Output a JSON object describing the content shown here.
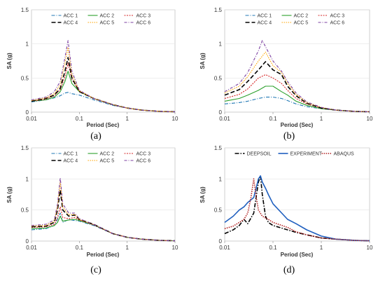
{
  "panel_labels": [
    "(a)",
    "(b)",
    "(c)",
    "(d)"
  ],
  "colors": {
    "ACC 1": "#1f77b4",
    "ACC 2": "#2ca02c",
    "ACC 3": "#d62728",
    "ACC 4": "#000000",
    "ACC 5": "#ffa500",
    "ACC 6": "#7b3fa0",
    "DEEPSOIL": "#000000",
    "EXPERIMENT": "#1f5fbf",
    "ABAQUS": "#b22222"
  },
  "chart_data": [
    {
      "type": "line",
      "xlabel": "Period (Sec)",
      "ylabel": "SA (g)",
      "xscale": "log",
      "xlim": [
        0.01,
        10
      ],
      "ylim": [
        0,
        1.5
      ],
      "xticks": [
        "0.01",
        "0.1",
        "1",
        "10"
      ],
      "yticks": [
        "0",
        "0.5",
        "1",
        "1.5"
      ],
      "legend": "top-center",
      "series": [
        {
          "name": "ACC 1",
          "x": [
            0.01,
            0.02,
            0.03,
            0.04,
            0.05,
            0.058,
            0.07,
            0.1,
            0.2,
            0.5,
            1,
            2,
            5,
            10
          ],
          "y": [
            0.15,
            0.18,
            0.21,
            0.24,
            0.28,
            0.29,
            0.27,
            0.25,
            0.18,
            0.1,
            0.06,
            0.03,
            0.01,
            0.005
          ]
        },
        {
          "name": "ACC 2",
          "x": [
            0.01,
            0.02,
            0.03,
            0.04,
            0.05,
            0.058,
            0.07,
            0.1,
            0.2,
            0.5,
            1,
            2,
            5,
            10
          ],
          "y": [
            0.16,
            0.18,
            0.22,
            0.3,
            0.45,
            0.6,
            0.42,
            0.3,
            0.2,
            0.11,
            0.06,
            0.03,
            0.01,
            0.005
          ]
        },
        {
          "name": "ACC 3",
          "x": [
            0.01,
            0.02,
            0.03,
            0.04,
            0.05,
            0.058,
            0.07,
            0.1,
            0.2,
            0.5,
            1,
            2,
            5,
            10
          ],
          "y": [
            0.16,
            0.19,
            0.24,
            0.33,
            0.52,
            0.72,
            0.48,
            0.31,
            0.2,
            0.11,
            0.06,
            0.03,
            0.01,
            0.005
          ]
        },
        {
          "name": "ACC 4",
          "x": [
            0.01,
            0.02,
            0.03,
            0.04,
            0.05,
            0.058,
            0.07,
            0.1,
            0.2,
            0.5,
            1,
            2,
            5,
            10
          ],
          "y": [
            0.16,
            0.2,
            0.25,
            0.35,
            0.6,
            0.8,
            0.5,
            0.3,
            0.2,
            0.11,
            0.06,
            0.03,
            0.01,
            0.005
          ]
        },
        {
          "name": "ACC 5",
          "x": [
            0.01,
            0.02,
            0.03,
            0.04,
            0.05,
            0.058,
            0.07,
            0.1,
            0.2,
            0.5,
            1,
            2,
            5,
            10
          ],
          "y": [
            0.17,
            0.21,
            0.27,
            0.4,
            0.72,
            0.95,
            0.55,
            0.31,
            0.2,
            0.11,
            0.06,
            0.03,
            0.01,
            0.005
          ]
        },
        {
          "name": "ACC 6",
          "x": [
            0.01,
            0.02,
            0.03,
            0.04,
            0.05,
            0.058,
            0.07,
            0.1,
            0.2,
            0.5,
            1,
            2,
            5,
            10
          ],
          "y": [
            0.18,
            0.22,
            0.3,
            0.45,
            0.8,
            1.05,
            0.6,
            0.32,
            0.2,
            0.11,
            0.06,
            0.03,
            0.01,
            0.005
          ]
        }
      ]
    },
    {
      "type": "line",
      "xlabel": "Period (Sec)",
      "ylabel": "SA (g)",
      "xscale": "log",
      "xlim": [
        0.01,
        10
      ],
      "ylim": [
        0,
        1.5
      ],
      "xticks": [
        "0.01",
        "0.1",
        "1",
        "10"
      ],
      "yticks": [
        "0",
        "0.5",
        "1",
        "1.5"
      ],
      "legend": "top-center",
      "series": [
        {
          "name": "ACC 1",
          "x": [
            0.01,
            0.02,
            0.03,
            0.05,
            0.07,
            0.1,
            0.15,
            0.2,
            0.3,
            0.5,
            1,
            2,
            5,
            10
          ],
          "y": [
            0.12,
            0.14,
            0.16,
            0.2,
            0.22,
            0.22,
            0.2,
            0.17,
            0.12,
            0.08,
            0.05,
            0.03,
            0.01,
            0.005
          ]
        },
        {
          "name": "ACC 2",
          "x": [
            0.01,
            0.02,
            0.03,
            0.05,
            0.07,
            0.1,
            0.15,
            0.2,
            0.3,
            0.5,
            1,
            2,
            5,
            10
          ],
          "y": [
            0.16,
            0.2,
            0.25,
            0.32,
            0.38,
            0.38,
            0.3,
            0.25,
            0.16,
            0.1,
            0.05,
            0.03,
            0.01,
            0.005
          ]
        },
        {
          "name": "ACC 3",
          "x": [
            0.01,
            0.02,
            0.03,
            0.05,
            0.07,
            0.1,
            0.15,
            0.2,
            0.3,
            0.5,
            1,
            2,
            5,
            10
          ],
          "y": [
            0.2,
            0.26,
            0.34,
            0.5,
            0.55,
            0.5,
            0.42,
            0.32,
            0.2,
            0.12,
            0.06,
            0.03,
            0.01,
            0.005
          ]
        },
        {
          "name": "ACC 4",
          "x": [
            0.01,
            0.02,
            0.03,
            0.05,
            0.07,
            0.1,
            0.15,
            0.2,
            0.3,
            0.5,
            1,
            2,
            5,
            10
          ],
          "y": [
            0.25,
            0.33,
            0.45,
            0.62,
            0.74,
            0.62,
            0.55,
            0.38,
            0.24,
            0.13,
            0.06,
            0.03,
            0.01,
            0.005
          ]
        },
        {
          "name": "ACC 5",
          "x": [
            0.01,
            0.02,
            0.03,
            0.05,
            0.07,
            0.1,
            0.15,
            0.2,
            0.3,
            0.5,
            1,
            2,
            5,
            10
          ],
          "y": [
            0.28,
            0.38,
            0.52,
            0.75,
            0.88,
            0.68,
            0.58,
            0.42,
            0.26,
            0.14,
            0.07,
            0.03,
            0.01,
            0.005
          ]
        },
        {
          "name": "ACC 6",
          "x": [
            0.01,
            0.02,
            0.03,
            0.05,
            0.06,
            0.1,
            0.15,
            0.2,
            0.3,
            0.5,
            1,
            2,
            5,
            10
          ],
          "y": [
            0.3,
            0.42,
            0.58,
            0.9,
            1.05,
            0.75,
            0.6,
            0.45,
            0.28,
            0.15,
            0.07,
            0.03,
            0.01,
            0.005
          ]
        }
      ]
    },
    {
      "type": "line",
      "xlabel": "Period (Sec)",
      "ylabel": "SA (g)",
      "xscale": "log",
      "xlim": [
        0.01,
        10
      ],
      "ylim": [
        0,
        1.5
      ],
      "xticks": [
        "0.01",
        "0.1",
        "1",
        "10"
      ],
      "yticks": [
        "0",
        "0.5",
        "1",
        "1.5"
      ],
      "legend": "top-center",
      "series": [
        {
          "name": "ACC 1",
          "x": [
            0.01,
            0.02,
            0.03,
            0.035,
            0.04,
            0.045,
            0.06,
            0.08,
            0.1,
            0.2,
            0.5,
            1,
            2,
            5,
            10
          ],
          "y": [
            0.18,
            0.2,
            0.25,
            0.35,
            0.45,
            0.3,
            0.35,
            0.33,
            0.32,
            0.25,
            0.12,
            0.06,
            0.03,
            0.01,
            0.005
          ]
        },
        {
          "name": "ACC 2",
          "x": [
            0.01,
            0.02,
            0.03,
            0.035,
            0.04,
            0.045,
            0.06,
            0.08,
            0.1,
            0.2,
            0.5,
            1,
            2,
            5,
            10
          ],
          "y": [
            0.2,
            0.21,
            0.25,
            0.3,
            0.4,
            0.32,
            0.34,
            0.35,
            0.33,
            0.26,
            0.12,
            0.06,
            0.03,
            0.01,
            0.005
          ]
        },
        {
          "name": "ACC 3",
          "x": [
            0.01,
            0.02,
            0.03,
            0.035,
            0.04,
            0.045,
            0.06,
            0.08,
            0.1,
            0.2,
            0.5,
            1,
            2,
            5,
            10
          ],
          "y": [
            0.22,
            0.23,
            0.27,
            0.38,
            0.55,
            0.38,
            0.36,
            0.38,
            0.34,
            0.26,
            0.12,
            0.06,
            0.03,
            0.01,
            0.005
          ]
        },
        {
          "name": "ACC 4",
          "x": [
            0.01,
            0.02,
            0.03,
            0.035,
            0.04,
            0.045,
            0.06,
            0.08,
            0.1,
            0.2,
            0.5,
            1,
            2,
            5,
            10
          ],
          "y": [
            0.23,
            0.24,
            0.3,
            0.5,
            0.82,
            0.5,
            0.4,
            0.42,
            0.35,
            0.27,
            0.12,
            0.06,
            0.03,
            0.01,
            0.005
          ]
        },
        {
          "name": "ACC 5",
          "x": [
            0.01,
            0.02,
            0.03,
            0.035,
            0.04,
            0.045,
            0.06,
            0.08,
            0.1,
            0.2,
            0.5,
            1,
            2,
            5,
            10
          ],
          "y": [
            0.24,
            0.25,
            0.32,
            0.55,
            0.95,
            0.55,
            0.42,
            0.43,
            0.35,
            0.27,
            0.12,
            0.06,
            0.03,
            0.01,
            0.005
          ]
        },
        {
          "name": "ACC 6",
          "x": [
            0.01,
            0.02,
            0.03,
            0.035,
            0.04,
            0.045,
            0.06,
            0.08,
            0.1,
            0.2,
            0.5,
            1,
            2,
            5,
            10
          ],
          "y": [
            0.25,
            0.27,
            0.34,
            0.6,
            1.02,
            0.6,
            0.45,
            0.45,
            0.36,
            0.27,
            0.12,
            0.06,
            0.03,
            0.01,
            0.005
          ]
        }
      ]
    },
    {
      "type": "line",
      "xlabel": "Period (Sec)",
      "ylabel": "SA (g)",
      "xscale": "log",
      "xlim": [
        0.01,
        10
      ],
      "ylim": [
        0,
        1.5
      ],
      "xticks": [
        "0.01",
        "0.1",
        "1",
        "10"
      ],
      "yticks": [
        "0",
        "0.5",
        "1",
        "1.5"
      ],
      "legend": "top-center",
      "series": [
        {
          "name": "DEEPSOIL",
          "x": [
            0.01,
            0.015,
            0.02,
            0.025,
            0.03,
            0.04,
            0.05,
            0.055,
            0.06,
            0.07,
            0.08,
            0.1,
            0.2,
            0.3,
            0.5,
            1,
            2,
            5,
            10
          ],
          "y": [
            0.12,
            0.18,
            0.25,
            0.35,
            0.28,
            0.45,
            0.95,
            1.05,
            0.75,
            0.4,
            0.3,
            0.25,
            0.18,
            0.14,
            0.1,
            0.05,
            0.03,
            0.01,
            0.005
          ]
        },
        {
          "name": "EXPERIMENT",
          "x": [
            0.01,
            0.015,
            0.02,
            0.025,
            0.03,
            0.04,
            0.05,
            0.055,
            0.06,
            0.07,
            0.08,
            0.1,
            0.2,
            0.3,
            0.5,
            1,
            2,
            5,
            10
          ],
          "y": [
            0.3,
            0.4,
            0.5,
            0.55,
            0.62,
            0.7,
            1.0,
            1.05,
            0.95,
            0.85,
            0.75,
            0.6,
            0.35,
            0.28,
            0.18,
            0.08,
            0.03,
            0.01,
            0.005
          ]
        },
        {
          "name": "ABAQUS",
          "x": [
            0.01,
            0.015,
            0.02,
            0.025,
            0.03,
            0.035,
            0.04,
            0.045,
            0.05,
            0.06,
            0.08,
            0.1,
            0.2,
            0.3,
            0.5,
            1,
            2,
            5,
            10
          ],
          "y": [
            0.2,
            0.24,
            0.3,
            0.35,
            0.45,
            0.7,
            1.0,
            0.7,
            0.5,
            0.4,
            0.35,
            0.3,
            0.22,
            0.15,
            0.1,
            0.05,
            0.03,
            0.01,
            0.005
          ]
        }
      ]
    }
  ]
}
